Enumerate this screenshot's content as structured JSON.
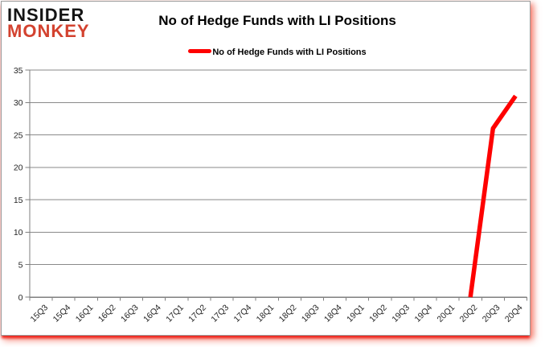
{
  "logo": {
    "line1": "INSIDER",
    "line2": "MONKEY"
  },
  "header": {
    "title": "No of Hedge Funds with LI Positions"
  },
  "colors": {
    "line": "#fe0000",
    "logo_red": "#d3422f",
    "grid": "#8a8a8a",
    "axis": "#7f7f7f",
    "tick_text": "#262626"
  },
  "chart_data": {
    "type": "line",
    "title": "No of Hedge Funds with LI Positions",
    "xlabel": "",
    "ylabel": "",
    "ylim": [
      0,
      35
    ],
    "ytick_step": 5,
    "grid": true,
    "legend_position": "top",
    "categories": [
      "15Q3",
      "15Q4",
      "16Q1",
      "16Q2",
      "16Q3",
      "16Q4",
      "17Q1",
      "17Q2",
      "17Q3",
      "17Q4",
      "18Q1",
      "18Q2",
      "18Q3",
      "18Q4",
      "19Q1",
      "19Q2",
      "19Q3",
      "19Q4",
      "20Q1",
      "20Q2",
      "20Q3",
      "20Q4"
    ],
    "series": [
      {
        "name": "No of Hedge Funds with LI Positions",
        "color": "#fe0000",
        "values": [
          null,
          null,
          null,
          null,
          null,
          null,
          null,
          null,
          null,
          null,
          null,
          null,
          null,
          null,
          null,
          null,
          null,
          null,
          null,
          0,
          26,
          31
        ]
      }
    ]
  }
}
